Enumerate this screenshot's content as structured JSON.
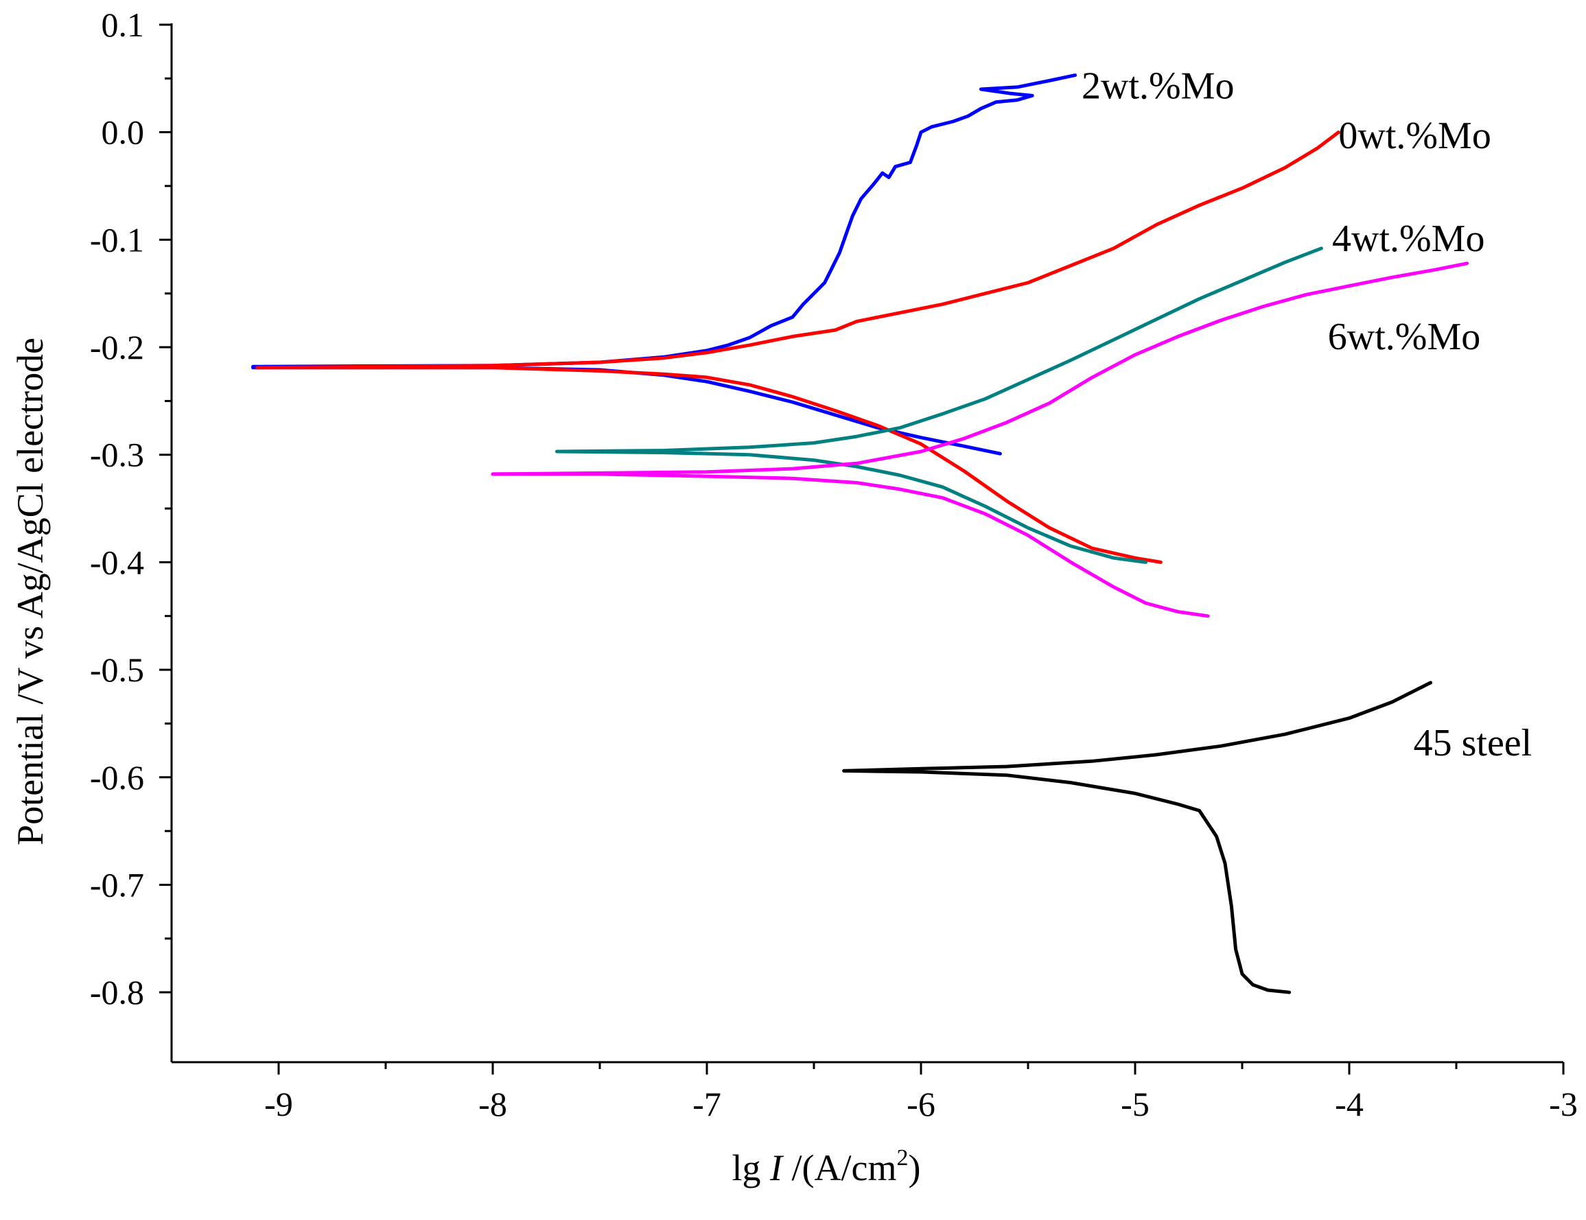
{
  "chart_data": {
    "type": "line",
    "title": "",
    "xlabel": {
      "text_prefix": "lg ",
      "text_italic": "I",
      "text_mid": " /(A/cm",
      "text_sup": "2",
      "text_suffix": ")"
    },
    "ylabel": "Potential /V vs Ag/AgCl electrode",
    "xlim": [
      -9.5,
      -3.0
    ],
    "ylim": [
      -0.865,
      0.1
    ],
    "x_ticks": [
      -9,
      -8,
      -7,
      -6,
      -5,
      -4,
      -3
    ],
    "x_tick_labels": [
      "-9",
      "-8",
      "-7",
      "-6",
      "-5",
      "-4",
      "-3"
    ],
    "y_ticks": [
      0.1,
      0.0,
      -0.1,
      -0.2,
      -0.3,
      -0.4,
      -0.5,
      -0.6,
      -0.7,
      -0.8
    ],
    "y_tick_labels": [
      "0.1",
      "0.0",
      "-0.1",
      "-0.2",
      "-0.3",
      "-0.4",
      "-0.5",
      "-0.6",
      "-0.7",
      "-0.8"
    ],
    "grid": false,
    "series": [
      {
        "name": "2wt.%Mo",
        "color": "#0000ff",
        "label_anchor": [
          -5.25,
          0.044
        ],
        "anodic": [
          [
            -9.12,
            -0.218
          ],
          [
            -8.0,
            -0.217
          ],
          [
            -7.5,
            -0.214
          ],
          [
            -7.2,
            -0.209
          ],
          [
            -7.0,
            -0.203
          ],
          [
            -6.9,
            -0.198
          ],
          [
            -6.8,
            -0.191
          ],
          [
            -6.7,
            -0.18
          ],
          [
            -6.6,
            -0.172
          ],
          [
            -6.55,
            -0.16
          ],
          [
            -6.5,
            -0.15
          ],
          [
            -6.45,
            -0.14
          ],
          [
            -6.42,
            -0.128
          ],
          [
            -6.38,
            -0.112
          ],
          [
            -6.35,
            -0.095
          ],
          [
            -6.32,
            -0.078
          ],
          [
            -6.28,
            -0.062
          ],
          [
            -6.22,
            -0.048
          ],
          [
            -6.18,
            -0.038
          ],
          [
            -6.15,
            -0.042
          ],
          [
            -6.12,
            -0.032
          ],
          [
            -6.05,
            -0.028
          ],
          [
            -6.02,
            -0.012
          ],
          [
            -6.0,
            0.0
          ],
          [
            -5.95,
            0.005
          ],
          [
            -5.85,
            0.01
          ],
          [
            -5.78,
            0.015
          ],
          [
            -5.72,
            0.022
          ],
          [
            -5.65,
            0.028
          ],
          [
            -5.55,
            0.03
          ],
          [
            -5.48,
            0.034
          ],
          [
            -5.58,
            0.036
          ],
          [
            -5.72,
            0.04
          ],
          [
            -5.55,
            0.042
          ],
          [
            -5.4,
            0.048
          ],
          [
            -5.28,
            0.053
          ]
        ],
        "cathodic": [
          [
            -9.12,
            -0.219
          ],
          [
            -8.0,
            -0.219
          ],
          [
            -7.5,
            -0.221
          ],
          [
            -7.2,
            -0.226
          ],
          [
            -7.0,
            -0.232
          ],
          [
            -6.8,
            -0.241
          ],
          [
            -6.6,
            -0.251
          ],
          [
            -6.4,
            -0.263
          ],
          [
            -6.2,
            -0.275
          ],
          [
            -6.0,
            -0.284
          ],
          [
            -5.8,
            -0.292
          ],
          [
            -5.63,
            -0.299
          ]
        ]
      },
      {
        "name": "0wt.%Mo",
        "color": "#ff0000",
        "label_anchor": [
          -4.05,
          -0.002
        ],
        "anodic": [
          [
            -9.1,
            -0.219
          ],
          [
            -8.0,
            -0.217
          ],
          [
            -7.5,
            -0.214
          ],
          [
            -7.2,
            -0.21
          ],
          [
            -7.0,
            -0.205
          ],
          [
            -6.8,
            -0.198
          ],
          [
            -6.6,
            -0.19
          ],
          [
            -6.4,
            -0.184
          ],
          [
            -6.3,
            -0.176
          ],
          [
            -6.1,
            -0.168
          ],
          [
            -5.9,
            -0.16
          ],
          [
            -5.7,
            -0.15
          ],
          [
            -5.5,
            -0.14
          ],
          [
            -5.3,
            -0.124
          ],
          [
            -5.1,
            -0.108
          ],
          [
            -4.9,
            -0.086
          ],
          [
            -4.7,
            -0.068
          ],
          [
            -4.5,
            -0.052
          ],
          [
            -4.3,
            -0.033
          ],
          [
            -4.15,
            -0.015
          ],
          [
            -4.05,
            0.0
          ]
        ],
        "cathodic": [
          [
            -9.1,
            -0.219
          ],
          [
            -8.0,
            -0.219
          ],
          [
            -7.5,
            -0.222
          ],
          [
            -7.2,
            -0.225
          ],
          [
            -7.0,
            -0.228
          ],
          [
            -6.8,
            -0.235
          ],
          [
            -6.6,
            -0.246
          ],
          [
            -6.4,
            -0.259
          ],
          [
            -6.2,
            -0.273
          ],
          [
            -6.0,
            -0.29
          ],
          [
            -5.8,
            -0.315
          ],
          [
            -5.6,
            -0.343
          ],
          [
            -5.4,
            -0.368
          ],
          [
            -5.2,
            -0.387
          ],
          [
            -5.0,
            -0.396
          ],
          [
            -4.88,
            -0.4
          ]
        ]
      },
      {
        "name": "4wt.%Mo",
        "color": "#008080",
        "label_anchor": [
          -4.08,
          -0.098
        ],
        "anodic": [
          [
            -7.7,
            -0.297
          ],
          [
            -7.2,
            -0.296
          ],
          [
            -6.8,
            -0.293
          ],
          [
            -6.5,
            -0.289
          ],
          [
            -6.3,
            -0.283
          ],
          [
            -6.1,
            -0.275
          ],
          [
            -5.9,
            -0.262
          ],
          [
            -5.7,
            -0.248
          ],
          [
            -5.5,
            -0.23
          ],
          [
            -5.3,
            -0.212
          ],
          [
            -5.1,
            -0.193
          ],
          [
            -4.9,
            -0.174
          ],
          [
            -4.7,
            -0.155
          ],
          [
            -4.5,
            -0.138
          ],
          [
            -4.3,
            -0.121
          ],
          [
            -4.13,
            -0.108
          ]
        ],
        "cathodic": [
          [
            -7.7,
            -0.297
          ],
          [
            -7.2,
            -0.298
          ],
          [
            -6.8,
            -0.3
          ],
          [
            -6.5,
            -0.305
          ],
          [
            -6.3,
            -0.311
          ],
          [
            -6.1,
            -0.319
          ],
          [
            -5.9,
            -0.33
          ],
          [
            -5.7,
            -0.348
          ],
          [
            -5.5,
            -0.368
          ],
          [
            -5.3,
            -0.385
          ],
          [
            -5.1,
            -0.396
          ],
          [
            -4.95,
            -0.4
          ]
        ]
      },
      {
        "name": "6wt.%Mo",
        "color": "#ff00ff",
        "label_anchor": [
          -4.1,
          -0.189
        ],
        "anodic": [
          [
            -8.0,
            -0.318
          ],
          [
            -7.5,
            -0.317
          ],
          [
            -7.0,
            -0.316
          ],
          [
            -6.6,
            -0.313
          ],
          [
            -6.3,
            -0.308
          ],
          [
            -6.0,
            -0.297
          ],
          [
            -5.8,
            -0.285
          ],
          [
            -5.6,
            -0.27
          ],
          [
            -5.4,
            -0.252
          ],
          [
            -5.2,
            -0.228
          ],
          [
            -5.0,
            -0.207
          ],
          [
            -4.8,
            -0.19
          ],
          [
            -4.6,
            -0.175
          ],
          [
            -4.4,
            -0.162
          ],
          [
            -4.2,
            -0.151
          ],
          [
            -4.0,
            -0.143
          ],
          [
            -3.8,
            -0.135
          ],
          [
            -3.6,
            -0.128
          ],
          [
            -3.45,
            -0.122
          ]
        ],
        "cathodic": [
          [
            -8.0,
            -0.318
          ],
          [
            -7.5,
            -0.318
          ],
          [
            -7.0,
            -0.32
          ],
          [
            -6.6,
            -0.322
          ],
          [
            -6.3,
            -0.326
          ],
          [
            -6.1,
            -0.332
          ],
          [
            -5.9,
            -0.34
          ],
          [
            -5.7,
            -0.355
          ],
          [
            -5.5,
            -0.375
          ],
          [
            -5.3,
            -0.4
          ],
          [
            -5.1,
            -0.423
          ],
          [
            -4.95,
            -0.438
          ],
          [
            -4.8,
            -0.446
          ],
          [
            -4.66,
            -0.45
          ]
        ]
      },
      {
        "name": "45 steel",
        "color": "#000000",
        "label_anchor": [
          -3.7,
          -0.567
        ],
        "anodic": [
          [
            -6.36,
            -0.594
          ],
          [
            -6.0,
            -0.592
          ],
          [
            -5.6,
            -0.59
          ],
          [
            -5.2,
            -0.585
          ],
          [
            -4.9,
            -0.579
          ],
          [
            -4.6,
            -0.571
          ],
          [
            -4.3,
            -0.56
          ],
          [
            -4.0,
            -0.545
          ],
          [
            -3.8,
            -0.53
          ],
          [
            -3.62,
            -0.512
          ]
        ],
        "cathodic": [
          [
            -6.36,
            -0.594
          ],
          [
            -6.0,
            -0.595
          ],
          [
            -5.6,
            -0.598
          ],
          [
            -5.3,
            -0.605
          ],
          [
            -5.0,
            -0.615
          ],
          [
            -4.8,
            -0.625
          ],
          [
            -4.7,
            -0.631
          ],
          [
            -4.62,
            -0.655
          ],
          [
            -4.58,
            -0.68
          ],
          [
            -4.55,
            -0.72
          ],
          [
            -4.53,
            -0.76
          ],
          [
            -4.5,
            -0.783
          ],
          [
            -4.45,
            -0.793
          ],
          [
            -4.38,
            -0.798
          ],
          [
            -4.28,
            -0.8
          ]
        ]
      }
    ]
  }
}
